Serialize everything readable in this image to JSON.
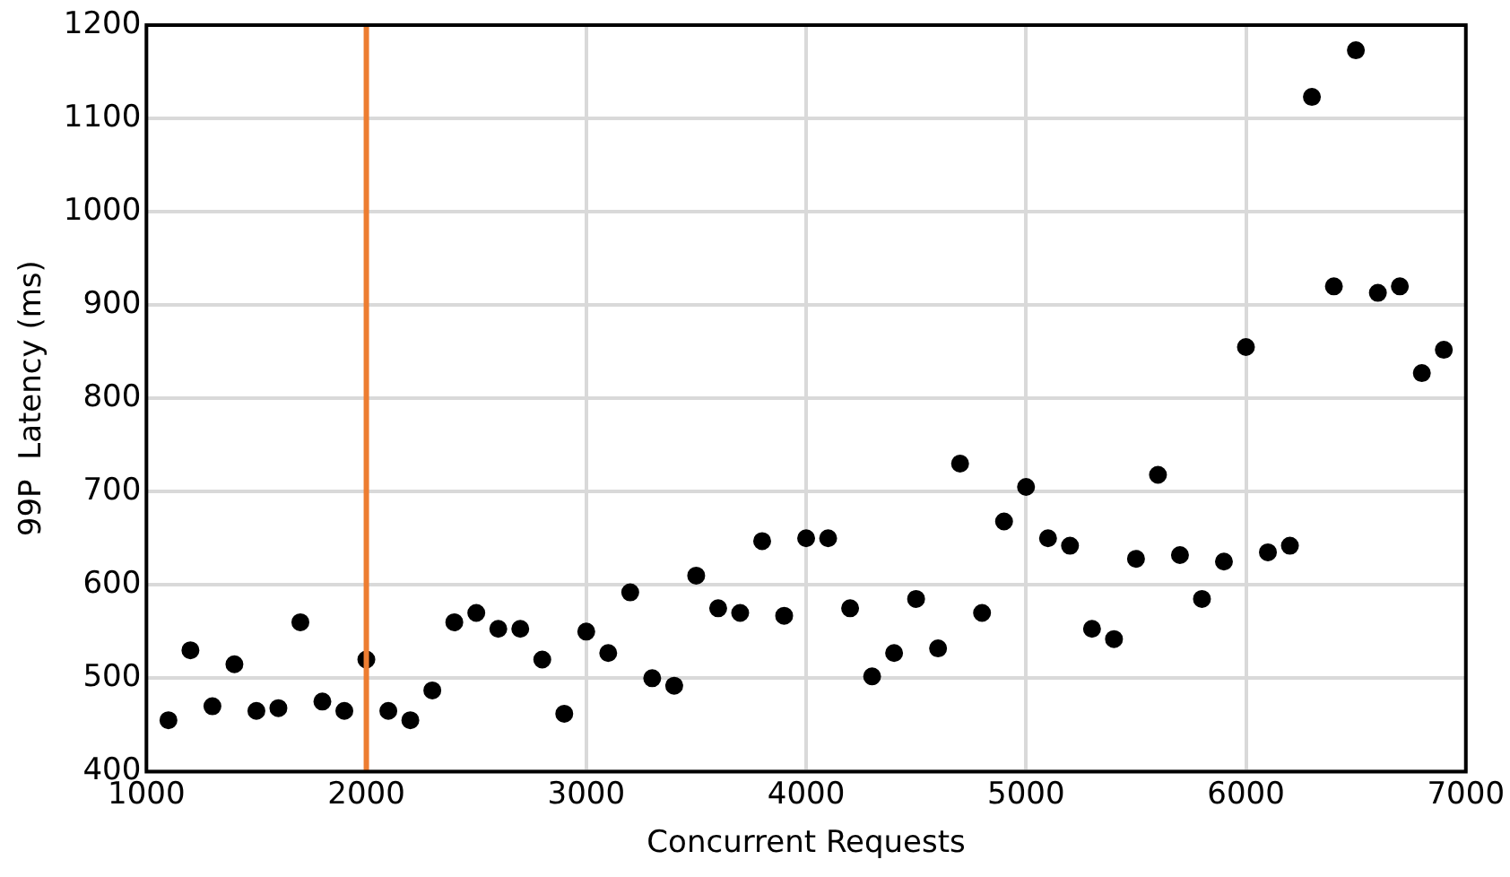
{
  "chart_data": {
    "type": "scatter",
    "xlabel": "Concurrent Requests",
    "ylabel": "99P  Latency (ms)",
    "x": [
      1100,
      1200,
      1300,
      1400,
      1500,
      1600,
      1700,
      1800,
      1900,
      2000,
      2100,
      2200,
      2300,
      2400,
      2500,
      2600,
      2700,
      2800,
      2900,
      3000,
      3100,
      3200,
      3300,
      3400,
      3500,
      3600,
      3700,
      3800,
      3900,
      4000,
      4100,
      4200,
      4300,
      4400,
      4500,
      4600,
      4700,
      4800,
      4900,
      5000,
      5100,
      5200,
      5300,
      5400,
      5500,
      5600,
      5700,
      5800,
      5900,
      6000,
      6100,
      6200,
      6300,
      6400,
      6500,
      6600,
      6700,
      6800,
      6900
    ],
    "series": [
      {
        "color": "#000000",
        "values": [
          455,
          530,
          470,
          515,
          465,
          468,
          560,
          475,
          465,
          520,
          465,
          455,
          487,
          560,
          570,
          553,
          553,
          520,
          462,
          550,
          527,
          592,
          500,
          492,
          610,
          575,
          570,
          647,
          567,
          650,
          650,
          575,
          502,
          527,
          585,
          532,
          730,
          570,
          668,
          705,
          650,
          642,
          553,
          542,
          628,
          718,
          632,
          585,
          625,
          855,
          635,
          642,
          1123,
          920,
          1173,
          913,
          920,
          827,
          852
        ]
      }
    ],
    "xlim": [
      1000,
      7000
    ],
    "xticks": [
      1000,
      2000,
      3000,
      4000,
      5000,
      6000,
      7000
    ],
    "ylim": [
      400,
      1200
    ],
    "yticks": [
      400,
      500,
      600,
      700,
      800,
      900,
      1000,
      1100,
      1200
    ],
    "ref_lines": [
      {
        "axis": "x",
        "value": 2000,
        "color": "#ed7d31",
        "line_style": "solid"
      }
    ],
    "grid": true,
    "legend": false,
    "marker": "circle"
  }
}
